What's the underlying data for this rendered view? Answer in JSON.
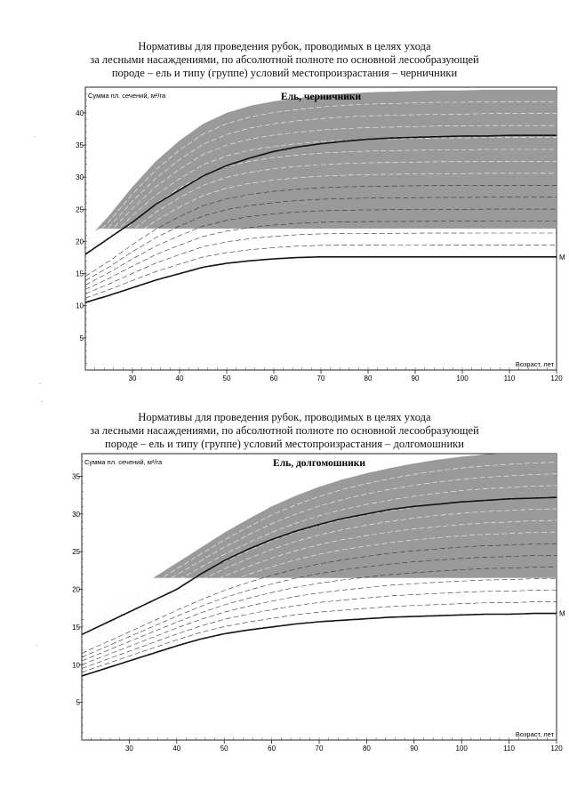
{
  "page": {
    "headings": [
      [
        "Нормативы для проведения рубок, проводимых в целях ухода",
        "за лесными насаждениями, по абсолютной полноте по основной лесообразующей",
        "породе – ель и типу (группе) условий местопроизрастания – черничники"
      ],
      [
        "Нормативы для проведения рубок, проводимых в целях ухода",
        "за лесными насаждениями, по абсолютной полноте по основной лесообразующей",
        "породе – ель и типу (группе) условий местопроизрастания – долгомошники"
      ]
    ]
  },
  "chart_data": [
    {
      "type": "area",
      "title": "Ель, черничники",
      "ylabel": "Сумма пл. сечений, м²/га",
      "xlabel": "Возраст, лет",
      "xlim": [
        20,
        120
      ],
      "ylim": [
        0,
        44
      ],
      "x_ticks": [
        30,
        40,
        50,
        60,
        70,
        80,
        90,
        100,
        110,
        120
      ],
      "y_ticks": [
        5,
        10,
        15,
        20,
        25,
        30,
        35,
        40
      ],
      "grid": false,
      "band_color": "#9a9a9a",
      "line_end_label": "М",
      "x": [
        20,
        25,
        30,
        35,
        40,
        45,
        50,
        55,
        60,
        65,
        70,
        75,
        80,
        85,
        90,
        95,
        100,
        105,
        110,
        115,
        120
      ],
      "shaded_region_floor": 22,
      "series": [
        {
          "role": "upper_bound",
          "values": [
            20,
            24,
            28.5,
            32.5,
            35.7,
            38.3,
            40,
            41.1,
            41.8,
            42.3,
            42.7,
            43,
            43.2,
            43.3,
            43.4,
            43.5,
            43.5,
            43.6,
            43.6,
            43.6,
            43.6
          ]
        },
        {
          "role": "main_line",
          "values": [
            18,
            20.5,
            23,
            25.8,
            28,
            30.2,
            31.8,
            33,
            34,
            34.7,
            35.2,
            35.6,
            35.9,
            36.1,
            36.2,
            36.3,
            36.4,
            36.4,
            36.5,
            36.5,
            36.5
          ]
        },
        {
          "role": "lower_line",
          "values": [
            10.5,
            11.6,
            12.8,
            14,
            15,
            16,
            16.6,
            17,
            17.3,
            17.5,
            17.6,
            17.6,
            17.6,
            17.6,
            17.6,
            17.6,
            17.6,
            17.6,
            17.6,
            17.6,
            17.6
          ]
        }
      ]
    },
    {
      "type": "area",
      "title": "Ель, долгомошники",
      "ylabel": "Сумма пл. сечений, м²/га",
      "xlabel": "Возраст, лет",
      "xlim": [
        20,
        120
      ],
      "ylim": [
        0,
        38
      ],
      "x_ticks": [
        30,
        40,
        50,
        60,
        70,
        80,
        90,
        100,
        110,
        120
      ],
      "y_ticks": [
        5,
        10,
        15,
        20,
        25,
        30,
        35
      ],
      "grid": false,
      "band_color": "#9a9a9a",
      "line_end_label": "М",
      "x": [
        20,
        25,
        30,
        35,
        40,
        45,
        50,
        55,
        60,
        65,
        70,
        75,
        80,
        85,
        90,
        95,
        100,
        105,
        110,
        115,
        120
      ],
      "shaded_region_floor": 21.5,
      "series": [
        {
          "role": "upper_bound",
          "values": [
            15.5,
            17.5,
            19.5,
            21.5,
            23.5,
            25.5,
            27.5,
            29.3,
            31,
            32.4,
            33.6,
            34.6,
            35.4,
            36.1,
            36.7,
            37.2,
            37.6,
            37.9,
            38.1,
            38.3,
            38.4
          ]
        },
        {
          "role": "main_line",
          "values": [
            14,
            15.5,
            17,
            18.5,
            20,
            22,
            23.8,
            25.3,
            26.6,
            27.7,
            28.6,
            29.4,
            30,
            30.6,
            31,
            31.3,
            31.6,
            31.8,
            32,
            32.1,
            32.2
          ]
        },
        {
          "role": "lower_line",
          "values": [
            8.5,
            9.5,
            10.5,
            11.5,
            12.5,
            13.4,
            14.1,
            14.6,
            15,
            15.4,
            15.7,
            15.9,
            16.1,
            16.3,
            16.4,
            16.5,
            16.6,
            16.7,
            16.7,
            16.8,
            16.8
          ]
        }
      ]
    }
  ]
}
